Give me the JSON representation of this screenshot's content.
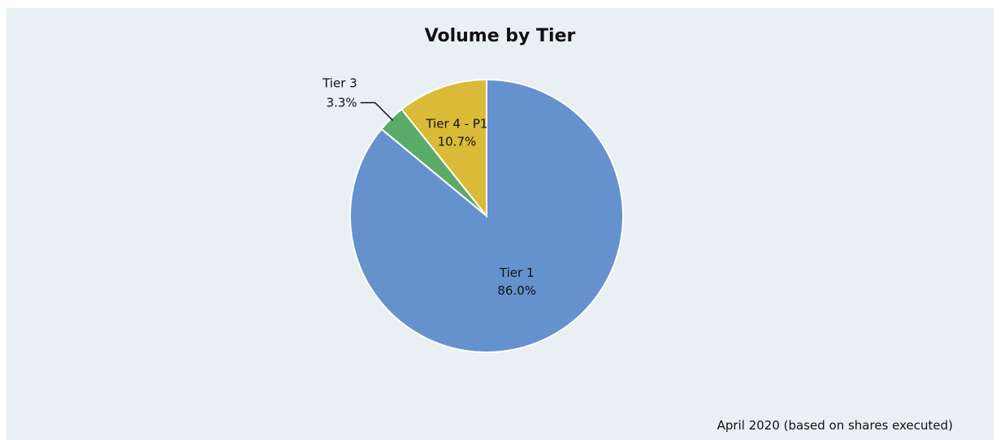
{
  "chart_data": {
    "type": "pie",
    "title": "Volume by Tier",
    "slices": [
      {
        "label": "Tier 1",
        "value": 86.0,
        "value_label": "86.0%",
        "color": "#6592cc"
      },
      {
        "label": "Tier 3",
        "value": 3.3,
        "value_label": "3.3%",
        "color": "#5aaa68"
      },
      {
        "label": "Tier 4 - P1",
        "value": 10.7,
        "value_label": "10.7%",
        "color": "#d9bb38"
      }
    ],
    "start": "12 o'clock",
    "direction": "clockwise",
    "slice_border_color": "#ffffff",
    "leader_line_on": "Tier 3"
  },
  "footnote": "April 2020 (based on shares executed)"
}
